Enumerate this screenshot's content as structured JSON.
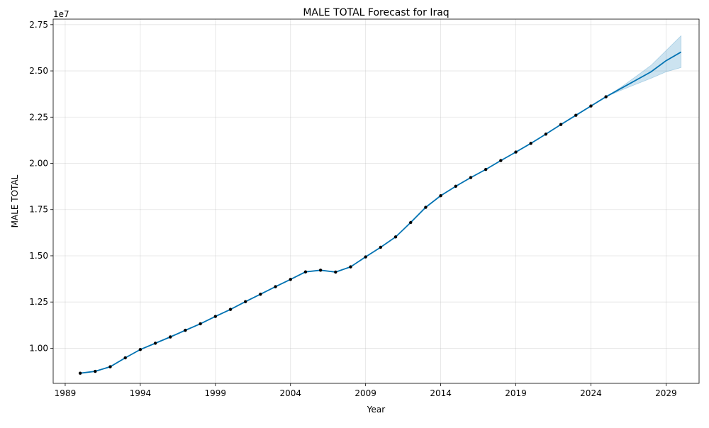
{
  "chart_data": {
    "type": "line",
    "title": "MALE TOTAL Forecast for Iraq",
    "xlabel": "Year",
    "ylabel": "MALE TOTAL",
    "y_offset_label": "1e7",
    "y_scale_factor": 10000000,
    "xlim": [
      1988.2,
      2031.2
    ],
    "ylim": [
      8100000,
      27800000
    ],
    "x_ticks": [
      1989,
      1994,
      1999,
      2004,
      2009,
      2014,
      2019,
      2024,
      2029
    ],
    "y_ticks": [
      10000000,
      12500000,
      15000000,
      17500000,
      20000000,
      22500000,
      25000000,
      27500000
    ],
    "y_tick_labels": [
      "1.00",
      "1.25",
      "1.50",
      "1.75",
      "2.00",
      "2.25",
      "2.50",
      "2.75"
    ],
    "grid": true,
    "colors": {
      "line": "#0072B2",
      "band": "#0072B2",
      "points": "#000000"
    },
    "observed": {
      "x": [
        1990,
        1991,
        1992,
        1993,
        1994,
        1995,
        1996,
        1997,
        1998,
        1999,
        2000,
        2001,
        2002,
        2003,
        2004,
        2005,
        2006,
        2007,
        2008,
        2009,
        2010,
        2011,
        2012,
        2013,
        2014,
        2015,
        2016,
        2017,
        2018,
        2019,
        2020,
        2021,
        2022,
        2023,
        2024,
        2025
      ],
      "y": [
        8650000,
        8750000,
        9000000,
        9480000,
        9930000,
        10270000,
        10610000,
        10970000,
        11320000,
        11720000,
        12100000,
        12520000,
        12920000,
        13330000,
        13720000,
        14130000,
        14220000,
        14120000,
        14400000,
        14940000,
        15460000,
        16020000,
        16800000,
        17620000,
        18250000,
        18760000,
        19230000,
        19670000,
        20150000,
        20610000,
        21080000,
        21580000,
        22100000,
        22600000,
        23100000,
        23600000
      ]
    },
    "forecast": {
      "x": [
        1990,
        1991,
        1992,
        1993,
        1994,
        1995,
        1996,
        1997,
        1998,
        1999,
        2000,
        2001,
        2002,
        2003,
        2004,
        2005,
        2006,
        2007,
        2008,
        2009,
        2010,
        2011,
        2012,
        2013,
        2014,
        2015,
        2016,
        2017,
        2018,
        2019,
        2020,
        2021,
        2022,
        2023,
        2024,
        2025,
        2026,
        2027,
        2028,
        2029,
        2030
      ],
      "yhat": [
        8650000,
        8750000,
        9000000,
        9480000,
        9930000,
        10270000,
        10610000,
        10970000,
        11320000,
        11720000,
        12100000,
        12520000,
        12920000,
        13330000,
        13720000,
        14130000,
        14220000,
        14120000,
        14400000,
        14940000,
        15460000,
        16020000,
        16800000,
        17620000,
        18250000,
        18760000,
        19230000,
        19670000,
        20150000,
        20610000,
        21080000,
        21580000,
        22100000,
        22600000,
        23100000,
        23600000,
        24050000,
        24500000,
        24950000,
        25550000,
        26020000
      ],
      "lower": [
        8650000,
        8750000,
        9000000,
        9480000,
        9930000,
        10270000,
        10610000,
        10970000,
        11320000,
        11720000,
        12100000,
        12520000,
        12920000,
        13330000,
        13720000,
        14130000,
        14220000,
        14120000,
        14400000,
        14940000,
        15460000,
        16020000,
        16800000,
        17620000,
        18250000,
        18760000,
        19230000,
        19670000,
        20150000,
        20610000,
        21080000,
        21580000,
        22100000,
        22600000,
        23100000,
        23600000,
        23950000,
        24280000,
        24600000,
        24950000,
        25180000
      ],
      "upper": [
        8650000,
        8750000,
        9000000,
        9480000,
        9930000,
        10270000,
        10610000,
        10970000,
        11320000,
        11720000,
        12100000,
        12520000,
        12920000,
        13330000,
        13720000,
        14130000,
        14220000,
        14120000,
        14400000,
        14940000,
        15460000,
        16020000,
        16800000,
        17620000,
        18250000,
        18760000,
        19230000,
        19670000,
        20150000,
        20610000,
        21080000,
        21580000,
        22100000,
        22600000,
        23100000,
        23600000,
        24120000,
        24700000,
        25300000,
        26100000,
        26900000
      ]
    }
  }
}
